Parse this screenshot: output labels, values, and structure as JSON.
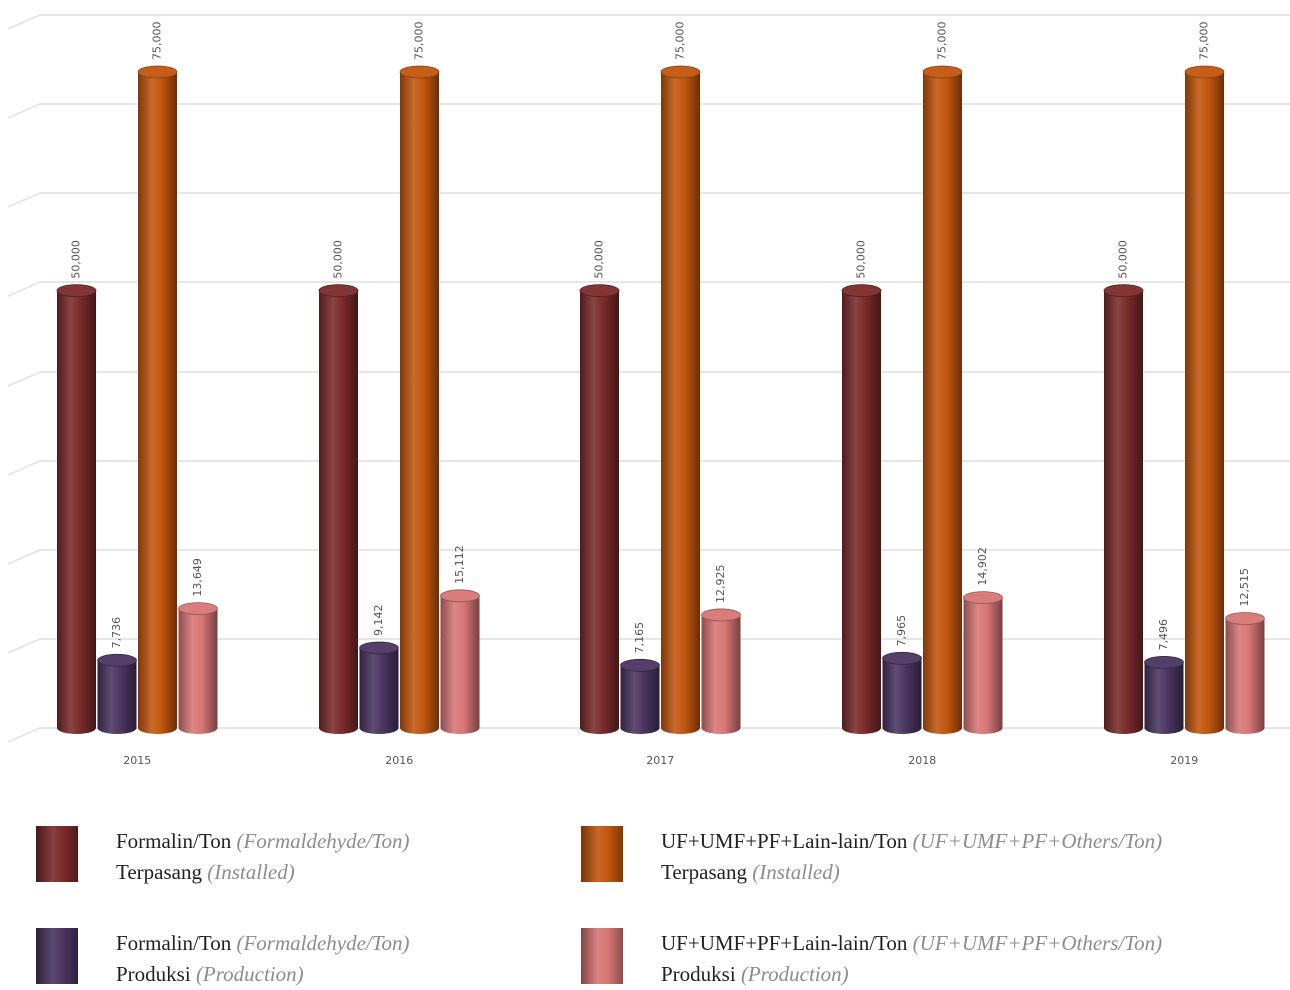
{
  "chart_data": {
    "type": "bar",
    "style": "3d-cylinder",
    "categories": [
      "2015",
      "2016",
      "2017",
      "2018",
      "2019"
    ],
    "series": [
      {
        "name": "Formalin/Ton (Formaldehyde/Ton) Terpasang (Installed)",
        "color": "#7a2a2a",
        "values": [
          50000,
          50000,
          50000,
          50000,
          50000
        ],
        "labels": [
          "50,000",
          "50,000",
          "50,000",
          "50,000",
          "50,000"
        ]
      },
      {
        "name": "Formalin/Ton (Formaldehyde/Ton) Produksi (Production)",
        "color": "#4a3560",
        "values": [
          7736,
          9142,
          7165,
          7965,
          7496
        ],
        "labels": [
          "7,736",
          "9,142",
          "7,165",
          "7,965",
          "7,496"
        ]
      },
      {
        "name": "UF+UMF+PF+Lain-lain/Ton (UF+UMF+PF+Others/Ton) Terpasang (Installed)",
        "color": "#c2560e",
        "values": [
          75000,
          75000,
          75000,
          75000,
          75000
        ],
        "labels": [
          "75,000",
          "75,000",
          "75,000",
          "75,000",
          "75,000"
        ]
      },
      {
        "name": "UF+UMF+PF+Lain-lain/Ton (UF+UMF+PF+Others/Ton) Produksi (Production)",
        "color": "#d77675",
        "values": [
          13649,
          15112,
          12925,
          14902,
          12515
        ],
        "labels": [
          "13,649",
          "15,112",
          "12,925",
          "14,902",
          "12,515"
        ]
      }
    ],
    "ylim": [
      0,
      80000
    ],
    "grid": true,
    "legend_position": "bottom"
  },
  "legend": [
    {
      "main": "Formalin/Ton",
      "main_it": "(Formaldehyde/Ton)",
      "sub": "Terpasang",
      "sub_it": "(Installed)",
      "color": "#7a2a2a"
    },
    {
      "main": "UF+UMF+PF+Lain-lain/Ton",
      "main_it": "(UF+UMF+PF+Others/Ton)",
      "sub": "Terpasang",
      "sub_it": "(Installed)",
      "color": "#c2560e"
    },
    {
      "main": "Formalin/Ton",
      "main_it": "(Formaldehyde/Ton)",
      "sub": "Produksi",
      "sub_it": "(Production)",
      "color": "#4a3560"
    },
    {
      "main": "UF+UMF+PF+Lain-lain/Ton",
      "main_it": "(UF+UMF+PF+Others/Ton)",
      "sub": "Produksi",
      "sub_it": "(Production)",
      "color": "#d77675"
    }
  ]
}
